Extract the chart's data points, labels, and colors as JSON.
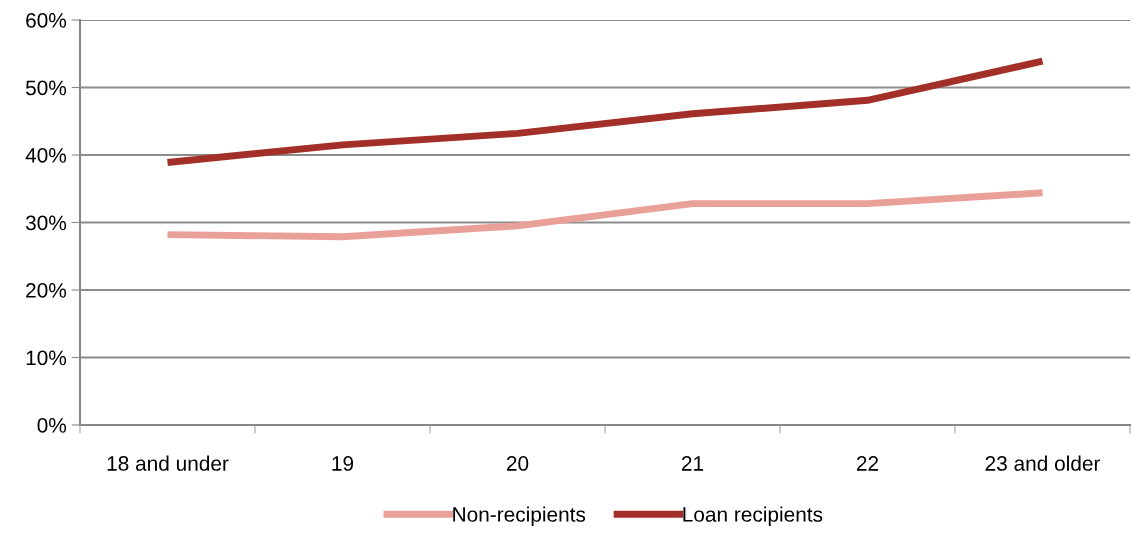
{
  "chart_data": {
    "type": "line",
    "categories": [
      "18 and under",
      "19",
      "20",
      "21",
      "22",
      "23 and older"
    ],
    "series": [
      {
        "name": "Non-recipients",
        "color": "#e9a098",
        "values": [
          28.2,
          27.9,
          29.5,
          32.8,
          32.8,
          34.4
        ]
      },
      {
        "name": "Loan recipients",
        "color": "#a33028",
        "values": [
          38.9,
          41.5,
          43.2,
          46.1,
          48.1,
          53.9
        ]
      }
    ],
    "ylim": [
      0,
      60
    ],
    "yticks": [
      {
        "value": 0,
        "label": "0%"
      },
      {
        "value": 10,
        "label": "10%"
      },
      {
        "value": 20,
        "label": "20%"
      },
      {
        "value": 30,
        "label": "30%"
      },
      {
        "value": 40,
        "label": "40%"
      },
      {
        "value": 50,
        "label": "50%"
      },
      {
        "value": 60,
        "label": "60%"
      }
    ],
    "grid": "y",
    "legend": "bottom",
    "marker": "none",
    "line_style": "solid"
  }
}
